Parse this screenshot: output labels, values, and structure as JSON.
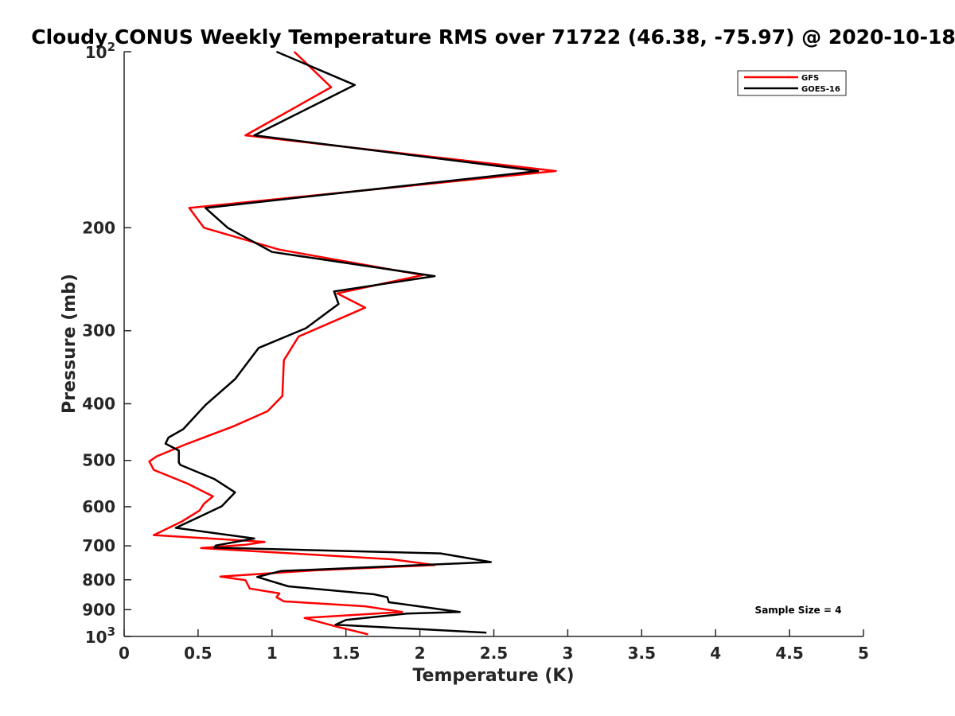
{
  "chart_data": {
    "type": "line",
    "title": "Cloudy CONUS Weekly Temperature RMS over 71722 (46.38, -75.97) @ 2020-10-18",
    "xlabel": "Temperature (K)",
    "ylabel": "Pressure (mb)",
    "xlim": [
      0,
      5
    ],
    "ylim": [
      100,
      1000
    ],
    "y_scale": "log",
    "y_reversed": true,
    "x_ticks": [
      0,
      0.5,
      1,
      1.5,
      2,
      2.5,
      3,
      3.5,
      4,
      4.5,
      5
    ],
    "x_tick_labels": [
      "0",
      "0.5",
      "1",
      "1.5",
      "2",
      "2.5",
      "3",
      "3.5",
      "4",
      "4.5",
      "5"
    ],
    "y_ticks": [
      100,
      200,
      300,
      400,
      500,
      600,
      700,
      800,
      900,
      1000
    ],
    "y_tick_labels": [
      {
        "base": "10",
        "exp": "2"
      },
      {
        "base": "200",
        "exp": ""
      },
      {
        "base": "300",
        "exp": ""
      },
      {
        "base": "400",
        "exp": ""
      },
      {
        "base": "500",
        "exp": ""
      },
      {
        "base": "600",
        "exp": ""
      },
      {
        "base": "700",
        "exp": ""
      },
      {
        "base": "800",
        "exp": ""
      },
      {
        "base": "900",
        "exp": ""
      },
      {
        "base": "10",
        "exp": "3"
      }
    ],
    "grid": false,
    "legend_position": "top-right",
    "annotation": "Sample Size = 4",
    "series": [
      {
        "name": "GFS",
        "color": "#ff0000",
        "points": [
          [
            1.15,
            100
          ],
          [
            1.4,
            115
          ],
          [
            0.82,
            139
          ],
          [
            2.92,
            160
          ],
          [
            0.44,
            185
          ],
          [
            0.54,
            200
          ],
          [
            1.05,
            218
          ],
          [
            2.02,
            241
          ],
          [
            1.44,
            259
          ],
          [
            1.63,
            274
          ],
          [
            1.18,
            307
          ],
          [
            1.08,
            337
          ],
          [
            1.07,
            388
          ],
          [
            0.97,
            412
          ],
          [
            0.74,
            437
          ],
          [
            0.41,
            470
          ],
          [
            0.22,
            492
          ],
          [
            0.17,
            502
          ],
          [
            0.2,
            519
          ],
          [
            0.43,
            548
          ],
          [
            0.6,
            576
          ],
          [
            0.54,
            593
          ],
          [
            0.51,
            609
          ],
          [
            0.39,
            636
          ],
          [
            0.2,
            671
          ],
          [
            0.95,
            689
          ],
          [
            0.82,
            697
          ],
          [
            0.52,
            706
          ],
          [
            1.81,
            738
          ],
          [
            2.1,
            755
          ],
          [
            1.28,
            771
          ],
          [
            0.65,
            790
          ],
          [
            0.82,
            801
          ],
          [
            0.85,
            828
          ],
          [
            1.05,
            844
          ],
          [
            1.03,
            857
          ],
          [
            1.08,
            871
          ],
          [
            1.63,
            888
          ],
          [
            1.88,
            908
          ],
          [
            1.22,
            930
          ],
          [
            1.43,
            961
          ],
          [
            1.65,
            992
          ]
        ]
      },
      {
        "name": "GOES-16",
        "color": "#000000",
        "points": [
          [
            1.03,
            100
          ],
          [
            1.56,
            114
          ],
          [
            0.88,
            139
          ],
          [
            2.8,
            160
          ],
          [
            0.55,
            185
          ],
          [
            0.7,
            200
          ],
          [
            1.0,
            220
          ],
          [
            2.1,
            242
          ],
          [
            1.42,
            257
          ],
          [
            1.45,
            270
          ],
          [
            1.23,
            297
          ],
          [
            0.91,
            321
          ],
          [
            0.75,
            363
          ],
          [
            0.65,
            382
          ],
          [
            0.55,
            402
          ],
          [
            0.4,
            442
          ],
          [
            0.3,
            457
          ],
          [
            0.28,
            468
          ],
          [
            0.37,
            481
          ],
          [
            0.37,
            504
          ],
          [
            0.38,
            509
          ],
          [
            0.61,
            538
          ],
          [
            0.75,
            567
          ],
          [
            0.66,
            599
          ],
          [
            0.51,
            624
          ],
          [
            0.35,
            652
          ],
          [
            0.88,
            680
          ],
          [
            0.62,
            699
          ],
          [
            0.61,
            705
          ],
          [
            2.14,
            721
          ],
          [
            2.48,
            746
          ],
          [
            1.06,
            773
          ],
          [
            0.9,
            791
          ],
          [
            1.11,
            821
          ],
          [
            1.69,
            847
          ],
          [
            1.78,
            857
          ],
          [
            1.79,
            874
          ],
          [
            2.27,
            908
          ],
          [
            1.91,
            914
          ],
          [
            1.5,
            937
          ],
          [
            1.43,
            955
          ],
          [
            2.45,
            985
          ]
        ]
      }
    ]
  }
}
